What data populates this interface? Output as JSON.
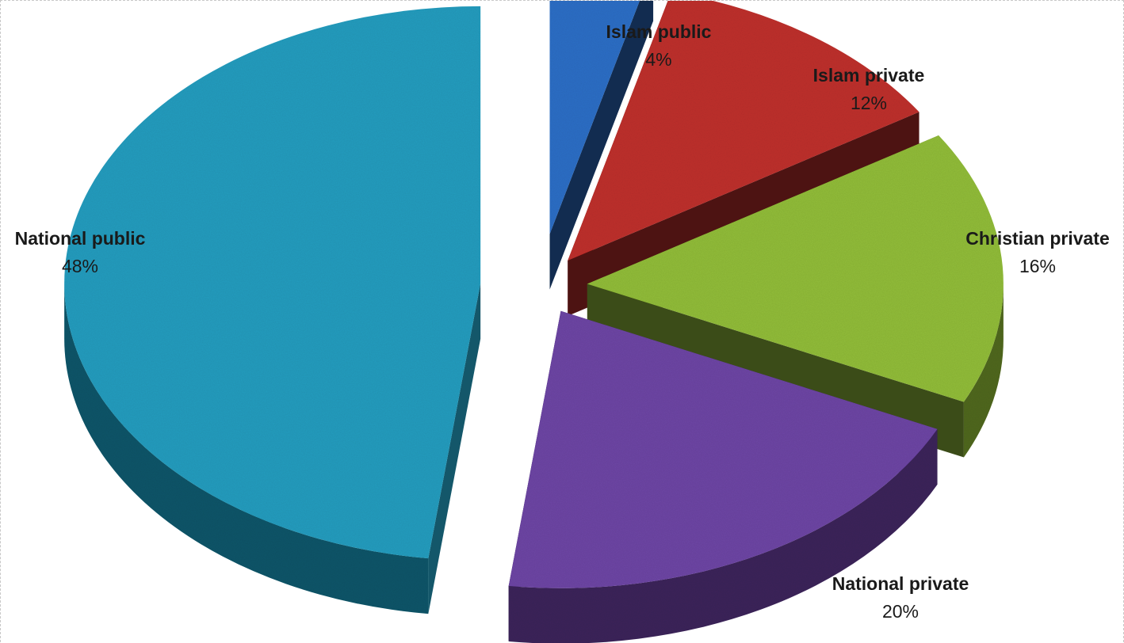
{
  "chart_data": {
    "type": "pie",
    "title": "",
    "categories": [
      "Islam public",
      "Islam private",
      "Christian private",
      "National private",
      "National public"
    ],
    "values": [
      4,
      12,
      16,
      20,
      48
    ],
    "labels": [
      {
        "name": "Islam public",
        "value": "4%"
      },
      {
        "name": "Islam private",
        "value": "12%"
      },
      {
        "name": "Christian private",
        "value": "16%"
      },
      {
        "name": "National private",
        "value": "20%"
      },
      {
        "name": "National public",
        "value": "48%"
      }
    ],
    "colors": [
      "#2e6fc7",
      "#c0302d",
      "#93be3b",
      "#6e46a6",
      "#259ec0"
    ],
    "legend": "none",
    "style": "3d-exploded"
  }
}
